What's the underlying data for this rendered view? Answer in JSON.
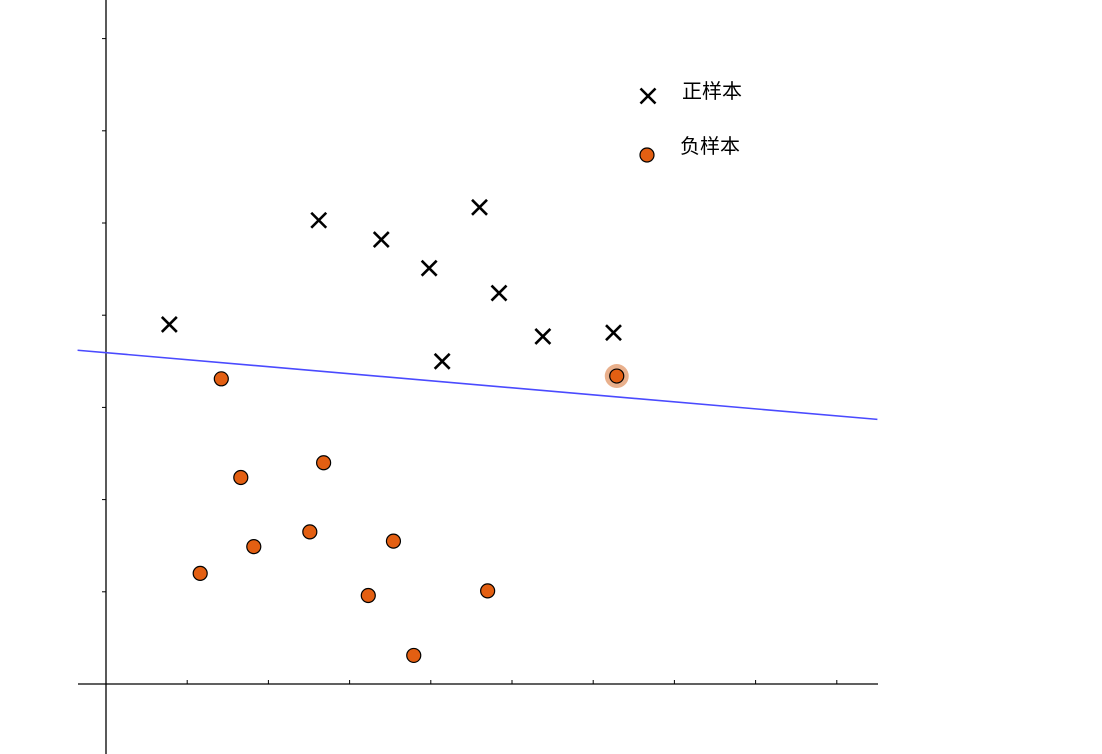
{
  "chart_data": {
    "type": "scatter",
    "title": "",
    "xlabel": "",
    "ylabel": "",
    "xlim": [
      -0.35,
      9.5
    ],
    "ylim": [
      -0.65,
      7.4
    ],
    "grid": false,
    "legend_placement": "top-right",
    "tick_labels_shown": false,
    "series": [
      {
        "name": "正样本",
        "marker": "x",
        "color": "#000000",
        "points": [
          [
            0.78,
            3.9
          ],
          [
            2.62,
            5.03
          ],
          [
            3.39,
            4.82
          ],
          [
            3.98,
            4.51
          ],
          [
            4.6,
            5.17
          ],
          [
            4.84,
            4.24
          ],
          [
            5.38,
            3.77
          ],
          [
            4.14,
            3.5
          ],
          [
            6.25,
            3.81
          ]
        ]
      },
      {
        "name": "负样本",
        "marker": "circle",
        "color": "#e35f12",
        "points": [
          [
            1.42,
            3.31
          ],
          [
            1.66,
            2.24
          ],
          [
            2.68,
            2.4
          ],
          [
            1.82,
            1.49
          ],
          [
            2.51,
            1.65
          ],
          [
            3.54,
            1.55
          ],
          [
            1.16,
            1.2
          ],
          [
            3.23,
            0.96
          ],
          [
            4.7,
            1.01
          ],
          [
            3.79,
            0.31
          ],
          [
            6.29,
            3.34
          ]
        ]
      }
    ],
    "decision_boundary": {
      "type": "line",
      "points": [
        [
          -0.35,
          3.62
        ],
        [
          9.5,
          2.87
        ]
      ],
      "color": "#4a4aff"
    },
    "highlighted_point": {
      "series": "负样本",
      "point": [
        6.29,
        3.34
      ],
      "halo_color": "#e9b08c"
    }
  }
}
